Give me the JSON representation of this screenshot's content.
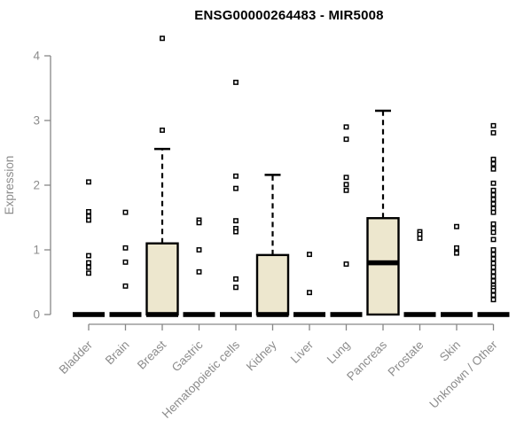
{
  "title": "ENSG00000264483 - MIR5008",
  "colors": {
    "box_fill": "#EDE7CE",
    "box_stroke": "#000000",
    "median": "#000000",
    "outlier_stroke": "#000000",
    "outlier_fill": "#ffffff",
    "axis_line": "#878787",
    "axis_text": "#8C8C8C",
    "title_text": "#000000"
  },
  "chart_data": {
    "type": "boxplot",
    "title": "ENSG00000264483 - MIR5008",
    "xlabel": "",
    "ylabel": "Expression",
    "ylim": [
      0,
      4.4
    ],
    "yticks": [
      0,
      1,
      2,
      3,
      4
    ],
    "grid": false,
    "legend": null,
    "categories": [
      "Bladder",
      "Brain",
      "Breast",
      "Gastric",
      "Hematopoietic cells",
      "Kidney",
      "Liver",
      "Lung",
      "Pancreas",
      "Prostate",
      "Skin",
      "Unknown / Other"
    ],
    "series": [
      {
        "category": "Bladder",
        "q1": 0,
        "median": 0,
        "q3": 0,
        "whisker_low": 0,
        "whisker_high": 0,
        "outliers": [
          2.05,
          1.59,
          1.52,
          1.46,
          0.91,
          0.8,
          0.73,
          0.64
        ]
      },
      {
        "category": "Brain",
        "q1": 0,
        "median": 0,
        "q3": 0,
        "whisker_low": 0,
        "whisker_high": 0,
        "outliers": [
          1.58,
          1.03,
          0.81,
          0.44
        ]
      },
      {
        "category": "Breast",
        "q1": 0,
        "median": 0,
        "q3": 1.1,
        "whisker_low": 0,
        "whisker_high": 2.56,
        "outliers": [
          4.27,
          2.85
        ]
      },
      {
        "category": "Gastric",
        "q1": 0,
        "median": 0,
        "q3": 0,
        "whisker_low": 0,
        "whisker_high": 0,
        "outliers": [
          1.46,
          1.42,
          1.0,
          0.66
        ]
      },
      {
        "category": "Hematopoietic cells",
        "q1": 0,
        "median": 0,
        "q3": 0,
        "whisker_low": 0,
        "whisker_high": 0,
        "outliers": [
          3.59,
          2.14,
          1.95,
          1.45,
          1.33,
          1.28,
          0.55,
          0.42
        ]
      },
      {
        "category": "Kidney",
        "q1": 0,
        "median": 0,
        "q3": 0.92,
        "whisker_low": 0,
        "whisker_high": 2.16,
        "outliers": []
      },
      {
        "category": "Liver",
        "q1": 0,
        "median": 0,
        "q3": 0,
        "whisker_low": 0,
        "whisker_high": 0,
        "outliers": [
          0.93,
          0.34
        ]
      },
      {
        "category": "Lung",
        "q1": 0,
        "median": 0,
        "q3": 0,
        "whisker_low": 0,
        "whisker_high": 0,
        "outliers": [
          2.9,
          2.71,
          2.12,
          2.01,
          1.92,
          0.78
        ]
      },
      {
        "category": "Pancreas",
        "q1": 0,
        "median": 0.8,
        "q3": 1.49,
        "whisker_low": 0,
        "whisker_high": 3.15,
        "outliers": []
      },
      {
        "category": "Prostate",
        "q1": 0,
        "median": 0,
        "q3": 0,
        "whisker_low": 0,
        "whisker_high": 0,
        "outliers": [
          1.28,
          1.24,
          1.18
        ]
      },
      {
        "category": "Skin",
        "q1": 0,
        "median": 0,
        "q3": 0,
        "whisker_low": 0,
        "whisker_high": 0,
        "outliers": [
          1.36,
          1.03,
          0.95
        ]
      },
      {
        "category": "Unknown / Other",
        "q1": 0,
        "median": 0,
        "q3": 0,
        "whisker_low": 0,
        "whisker_high": 0,
        "outliers": [
          2.92,
          2.81,
          2.4,
          2.33,
          2.25,
          2.03,
          1.92,
          1.85,
          1.78,
          1.71,
          1.64,
          1.58,
          1.4,
          1.33,
          1.27,
          1.16,
          1.0,
          0.93,
          0.86,
          0.79,
          0.73,
          0.66,
          0.59,
          0.52,
          0.45,
          0.41,
          0.37,
          0.3,
          0.23
        ]
      }
    ]
  }
}
